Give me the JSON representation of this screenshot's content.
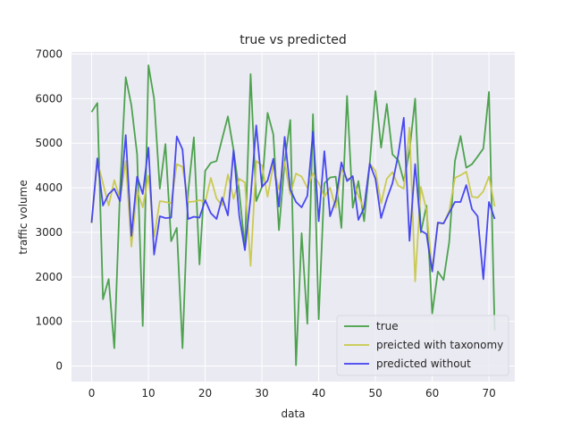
{
  "chart_data": {
    "type": "line",
    "title": "true vs predicted",
    "xlabel": "data",
    "ylabel": "traffic volume",
    "xlim": [
      -3.55,
      74.55
    ],
    "ylim": [
      -350,
      7050
    ],
    "xticks": [
      0,
      10,
      20,
      30,
      40,
      50,
      60,
      70
    ],
    "yticks": [
      0,
      1000,
      2000,
      3000,
      4000,
      5000,
      6000,
      7000
    ],
    "grid": true,
    "legend_position": "lower right",
    "x": [
      0,
      1,
      2,
      3,
      4,
      5,
      6,
      7,
      8,
      9,
      10,
      11,
      12,
      13,
      14,
      15,
      16,
      17,
      18,
      19,
      20,
      21,
      22,
      23,
      24,
      25,
      26,
      27,
      28,
      29,
      30,
      31,
      32,
      33,
      34,
      35,
      36,
      37,
      38,
      39,
      40,
      41,
      42,
      43,
      44,
      45,
      46,
      47,
      48,
      49,
      50,
      51,
      52,
      53,
      54,
      55,
      56,
      57,
      58,
      59,
      60,
      61,
      62,
      63,
      64,
      65,
      66,
      67,
      68,
      69,
      70,
      71
    ],
    "series": [
      {
        "name": "true",
        "color": "#449e44",
        "values": [
          5700,
          5900,
          1500,
          1950,
          400,
          3950,
          6480,
          5850,
          4750,
          900,
          6750,
          6000,
          3980,
          4980,
          2800,
          3100,
          400,
          3900,
          5130,
          2280,
          4380,
          4560,
          4600,
          5100,
          5600,
          4850,
          3900,
          2650,
          6550,
          3700,
          4020,
          5680,
          5200,
          3050,
          4580,
          5520,
          20,
          2980,
          950,
          5650,
          1050,
          4100,
          4230,
          4250,
          3100,
          6060,
          3550,
          4150,
          3250,
          4540,
          6170,
          4900,
          5880,
          4750,
          4620,
          4150,
          4830,
          6000,
          3000,
          3600,
          1180,
          2120,
          1930,
          2780,
          4600,
          5160,
          4450,
          4530,
          4700,
          4880,
          6150,
          800
        ]
      },
      {
        "name": "preicted with taxonomy",
        "color": "#c8c84a",
        "values": [
          3200,
          4600,
          4100,
          3600,
          4170,
          3750,
          4600,
          2680,
          3950,
          3560,
          4270,
          2900,
          3700,
          3680,
          3650,
          4530,
          4470,
          3680,
          3690,
          3720,
          3680,
          4220,
          3760,
          3600,
          4300,
          3750,
          4200,
          4120,
          2250,
          4600,
          4500,
          3800,
          4520,
          3960,
          4580,
          3850,
          4320,
          4250,
          4000,
          4320,
          4100,
          3800,
          4000,
          3550,
          4420,
          4200,
          4220,
          3820,
          3520,
          4540,
          4380,
          3650,
          4200,
          4350,
          4050,
          3980,
          5350,
          1900,
          4020,
          3500,
          2150,
          3200,
          3200,
          3480,
          4220,
          4280,
          4360,
          3800,
          3780,
          3920,
          4250,
          3580
        ]
      },
      {
        "name": "predicted without",
        "color": "#3f3ff0",
        "values": [
          3220,
          4660,
          3600,
          3860,
          3980,
          3700,
          5180,
          2920,
          4250,
          3860,
          4900,
          2500,
          3360,
          3320,
          3330,
          5150,
          4860,
          3300,
          3350,
          3330,
          3720,
          3430,
          3300,
          3780,
          3380,
          4840,
          3370,
          2600,
          3780,
          5400,
          4020,
          4160,
          4650,
          3580,
          5140,
          3960,
          3680,
          3560,
          3820,
          5260,
          3250,
          4820,
          3360,
          3720,
          4570,
          4150,
          4260,
          3280,
          3550,
          4540,
          4200,
          3320,
          3750,
          4100,
          4730,
          5570,
          2810,
          4530,
          3040,
          2960,
          2120,
          3220,
          3200,
          3440,
          3680,
          3680,
          4060,
          3520,
          3360,
          1950,
          3680,
          3300
        ]
      }
    ]
  }
}
